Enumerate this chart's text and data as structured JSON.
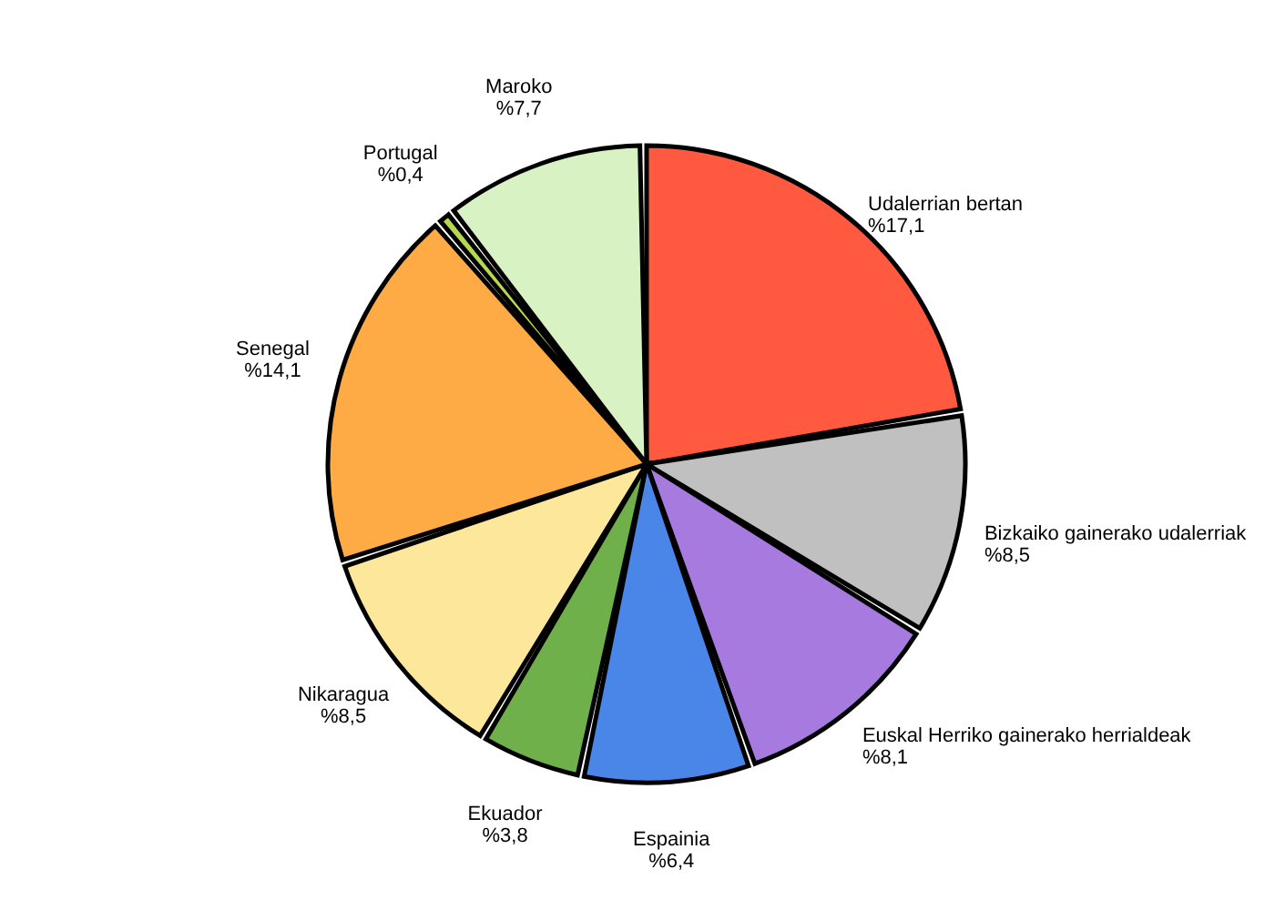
{
  "chart_data": {
    "type": "pie",
    "categories": [
      "Udalerrian bertan",
      "Bizkaiko gainerako udalerriak",
      "Euskal Herriko gainerako herrialdeak",
      "Espainia",
      "Ekuador",
      "Nikaragua",
      "Senegal",
      "Portugal",
      "Maroko"
    ],
    "values": [
      17.1,
      8.5,
      8.1,
      6.4,
      3.8,
      8.5,
      14.1,
      0.4,
      7.7
    ],
    "value_labels": [
      "%17,1",
      "%8,5",
      "%8,1",
      "%6,4",
      "%3,8",
      "%8,5",
      "%14,1",
      "%0,4",
      "%7,7"
    ],
    "colors": [
      "#ff5a40",
      "#c0c0c0",
      "#a77ae0",
      "#4a86e8",
      "#6fb04a",
      "#fce79a",
      "#ffab45",
      "#b6d84f",
      "#d9f2c4"
    ],
    "legend": false
  }
}
